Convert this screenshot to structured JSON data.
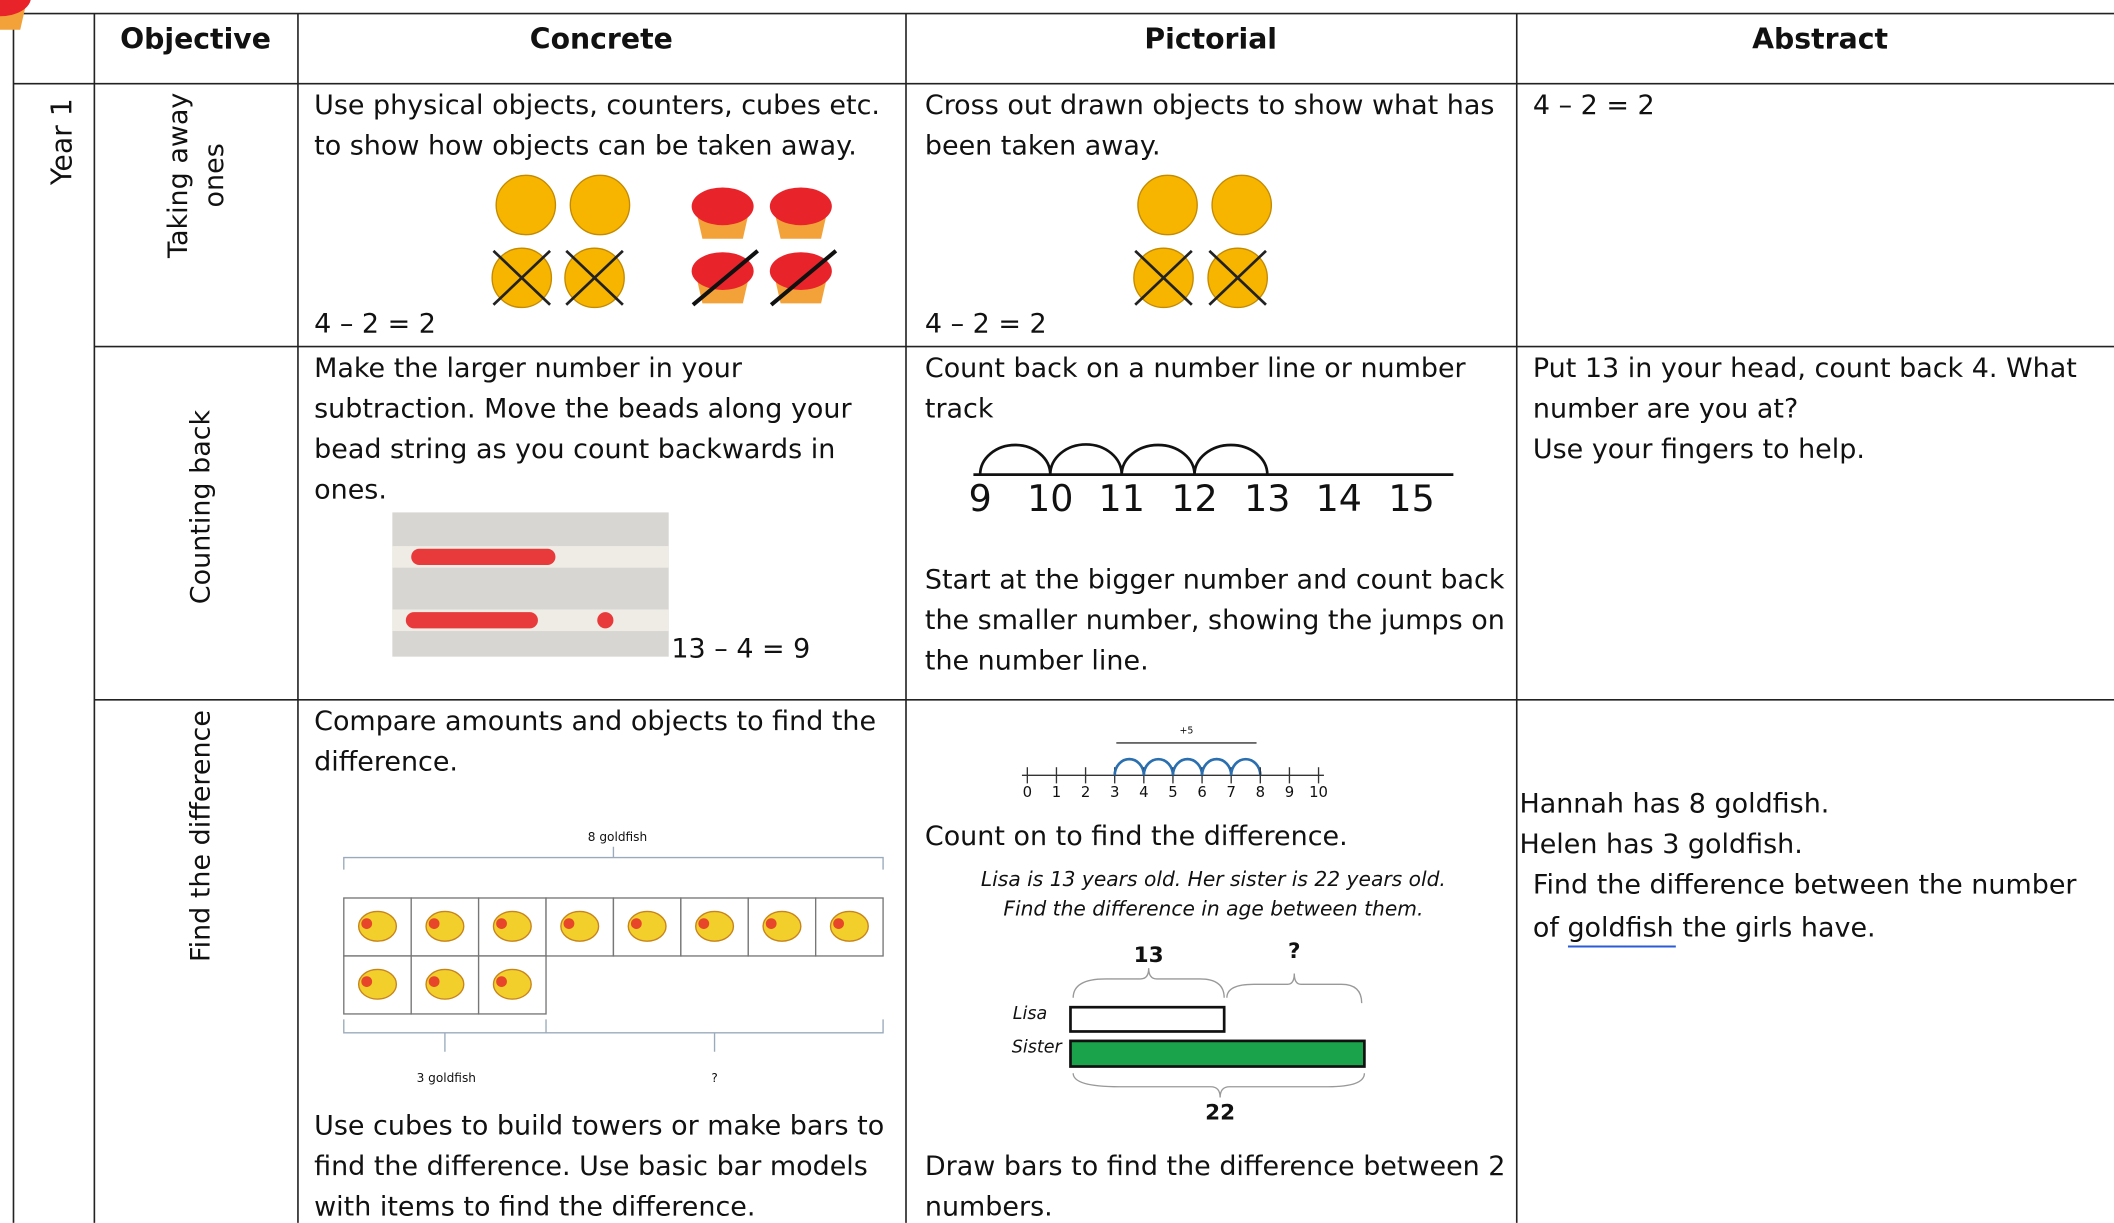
{
  "year": "Year 1",
  "header": {
    "columns": [
      "Objective",
      "Concrete",
      "Pictorial",
      "Abstract"
    ]
  },
  "rows": [
    {
      "objective": [
        "Taking away",
        "ones"
      ],
      "concrete": {
        "text": [
          "Use physical objects, counters, cubes etc.",
          "to show how objects can be taken away."
        ],
        "equation": "4 – 2 = 2"
      },
      "pictorial": {
        "text": [
          "Cross out drawn objects to show what has",
          "been taken away."
        ],
        "equation": "4 – 2 = 2"
      },
      "abstract": {
        "text": [
          "4 – 2 = 2"
        ]
      }
    },
    {
      "objective": [
        "Counting back"
      ],
      "concrete": {
        "text": [
          "Make the larger number in your",
          "subtraction. Move the beads along your",
          "bead string as you count backwards in",
          "ones."
        ],
        "equation": "13 – 4 = 9"
      },
      "pictorial": {
        "text": [
          "Count back on a number line or number",
          "track"
        ],
        "number_line": [
          9,
          10,
          11,
          12,
          13,
          14,
          15
        ],
        "text2": [
          "Start at the bigger number and count back",
          "the smaller number, showing the jumps on",
          "the number line."
        ]
      },
      "abstract": {
        "text": [
          "Put 13 in your head, count back 4. What",
          "number are you at?",
          "Use your fingers to help."
        ]
      }
    },
    {
      "objective": [
        "Find the difference"
      ],
      "concrete": {
        "text": [
          "Compare amounts and objects to find the",
          "difference."
        ],
        "bar_model": {
          "total": "8 goldfish",
          "part": "3 goldfish",
          "unknown": "?"
        },
        "text2": [
          "Use cubes to build towers or make bars to",
          "find the difference. Use basic bar models",
          "with items to find the difference."
        ]
      },
      "pictorial": {
        "jump_label": "+5",
        "number_line": [
          0,
          1,
          2,
          3,
          4,
          5,
          6,
          7,
          8,
          9,
          10
        ],
        "text": [
          "Count on to find the difference."
        ],
        "problem": [
          "Lisa is 13 years old. Her sister is 22 years old.",
          "Find the difference in age between them."
        ],
        "bar_model": {
          "known": "13",
          "unknown": "?",
          "row1": "Lisa",
          "row2": "Sister",
          "total": "22"
        },
        "text2": [
          "Draw bars to find the difference between 2",
          "numbers."
        ]
      },
      "abstract": {
        "text": [
          "Hannah has 8 goldfish.",
          "Helen has 3 goldfish.",
          "Find the difference between the number",
          "of goldfish the girls have."
        ]
      }
    }
  ]
}
